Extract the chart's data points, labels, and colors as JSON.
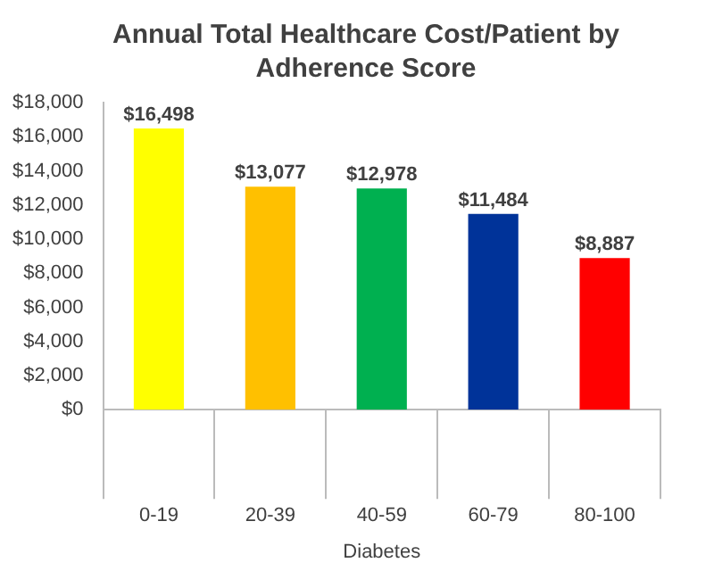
{
  "chart_data": {
    "type": "bar",
    "title": "Annual Total Healthcare Cost/Patient by Adherence Score",
    "xlabel": "Diabetes",
    "categories": [
      "0-19",
      "20-39",
      "40-59",
      "60-79",
      "80-100"
    ],
    "values": [
      16498,
      13077,
      12978,
      11484,
      8887
    ],
    "value_labels": [
      "$16,498",
      "$13,077",
      "$12,978",
      "$11,484",
      "$8,887"
    ],
    "colors": [
      "#ffff00",
      "#ffc000",
      "#00b050",
      "#003399",
      "#ff0000"
    ],
    "ylim": [
      0,
      18000
    ],
    "yticks": [
      {
        "value": 0,
        "label": "$0"
      },
      {
        "value": 2000,
        "label": "$2,000"
      },
      {
        "value": 4000,
        "label": "$4,000"
      },
      {
        "value": 6000,
        "label": "$6,000"
      },
      {
        "value": 8000,
        "label": "$8,000"
      },
      {
        "value": 10000,
        "label": "$10,000"
      },
      {
        "value": 12000,
        "label": "$12,000"
      },
      {
        "value": 14000,
        "label": "$14,000"
      },
      {
        "value": 16000,
        "label": "$16,000"
      },
      {
        "value": 18000,
        "label": "$18,000"
      }
    ],
    "grid": false,
    "legend": false
  }
}
